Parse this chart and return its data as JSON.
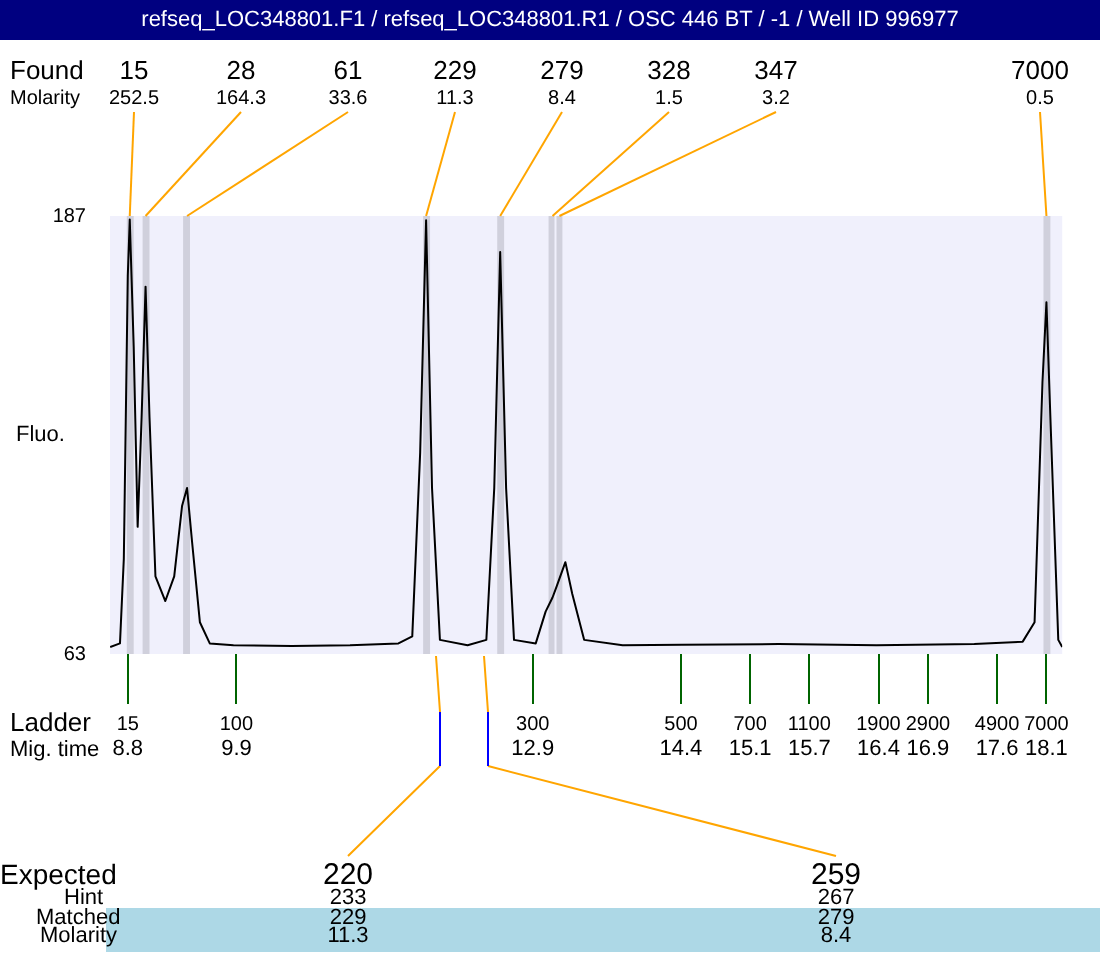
{
  "chart_data": {
    "type": "line",
    "title": "refseq_LOC348801.F1 / refseq_LOC348801.R1 / OSC 446 BT / -1 / Well ID 996977",
    "ylabel": "Fluo.",
    "x": [
      8.622,
      8.721,
      8.76,
      8.8,
      8.82,
      8.86,
      8.9,
      8.94,
      8.98,
      9.02,
      9.08,
      9.18,
      9.27,
      9.35,
      9.4,
      9.45,
      9.53,
      9.63,
      9.87,
      10.46,
      11.05,
      11.54,
      11.68,
      11.76,
      11.82,
      11.88,
      11.96,
      12.24,
      12.43,
      12.51,
      12.57,
      12.63,
      12.71,
      12.93,
      13.03,
      13.1,
      13.14,
      13.23,
      13.3,
      13.42,
      13.81,
      14.41,
      15.39,
      16.38,
      17.37,
      17.86,
      17.98,
      18.06,
      18.1,
      18.14,
      18.22,
      18.26
    ],
    "series": [
      {
        "color": "#000000",
        "values": [
          65,
          66,
          90,
          170,
          186,
          150,
          99,
          130,
          167,
          130,
          85,
          78,
          85,
          105,
          110,
          95,
          72,
          66,
          65.5,
          65.3,
          65.5,
          66,
          68,
          120,
          185.8,
          110,
          67,
          65.5,
          67,
          110,
          176.8,
          110,
          67,
          66,
          75,
          79,
          82,
          89,
          80,
          67,
          65.5,
          65.6,
          65.8,
          65.5,
          65.8,
          66.5,
          72,
          140,
          162.6,
          130,
          67,
          65
        ]
      }
    ],
    "xlim": [
      8.62,
      18.26
    ],
    "xticks": [
      8.8,
      9.9,
      12.9,
      14.4,
      15.1,
      15.7,
      16.4,
      16.9,
      17.6,
      18.1
    ],
    "ylim": [
      63,
      187
    ],
    "yticks": [
      63,
      187
    ],
    "grid": false,
    "bands": [
      {
        "axis": "x",
        "from": 8.79,
        "to": 8.86,
        "color": "#d0d0dc"
      },
      {
        "axis": "x",
        "from": 8.95,
        "to": 9.02,
        "color": "#d0d0dc"
      },
      {
        "axis": "x",
        "from": 9.36,
        "to": 9.43,
        "color": "#d0d0dc"
      },
      {
        "axis": "x",
        "from": 11.79,
        "to": 11.86,
        "color": "#d0d0dc"
      },
      {
        "axis": "x",
        "from": 12.54,
        "to": 12.61,
        "color": "#d0d0dc"
      },
      {
        "axis": "x",
        "from": 13.06,
        "to": 13.12,
        "color": "#d0d0dc"
      },
      {
        "axis": "x",
        "from": 13.14,
        "to": 13.2,
        "color": "#d0d0dc"
      },
      {
        "axis": "x",
        "from": 18.07,
        "to": 18.14,
        "color": "#d0d0dc"
      }
    ],
    "annotations": [
      "Found",
      "Molarity",
      "Ladder",
      "Mig. time",
      "Expected",
      "Hint",
      "Matched",
      "Molarity",
      {
        "text": "15\n252.5",
        "x": 8.82,
        "y": 187
      },
      {
        "text": "28\n164.3",
        "x": 8.98,
        "y": 187
      },
      {
        "text": "61\n33.6",
        "x": 9.4,
        "y": 187
      },
      {
        "text": "229\n11.3",
        "x": 11.82,
        "y": 187
      },
      {
        "text": "279\n8.4",
        "x": 12.57,
        "y": 187
      },
      {
        "text": "328\n1.5",
        "x": 13.1,
        "y": 187
      },
      {
        "text": "347\n3.2",
        "x": 13.17,
        "y": 187
      },
      {
        "text": "7000\n0.5",
        "x": 18.1,
        "y": 187
      },
      "15",
      "100",
      "300",
      "500",
      "700",
      "1100",
      "1900",
      "2900",
      "4900",
      "7000",
      "220\n233\n229\n11.3",
      "259\n267\n279\n8.4"
    ],
    "legend": false
  }
}
